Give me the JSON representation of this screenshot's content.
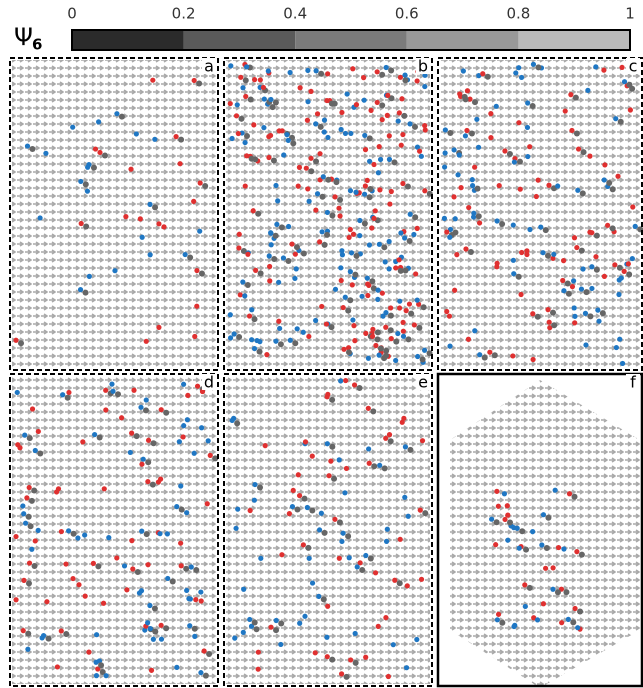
{
  "colorbar": {
    "symbol": "Ψ",
    "subscript": "6",
    "lim": [
      0,
      1
    ],
    "ticks": [
      0,
      0.2,
      0.4,
      0.6,
      0.8,
      1
    ],
    "colors": [
      "#2b2b2b",
      "#5a5a5a",
      "#7b7b7b",
      "#999999",
      "#bababa"
    ]
  },
  "panels": [
    {
      "label": "a"
    },
    {
      "label": "b"
    },
    {
      "label": "c"
    },
    {
      "label": "d"
    },
    {
      "label": "e"
    },
    {
      "label": "f"
    }
  ]
}
